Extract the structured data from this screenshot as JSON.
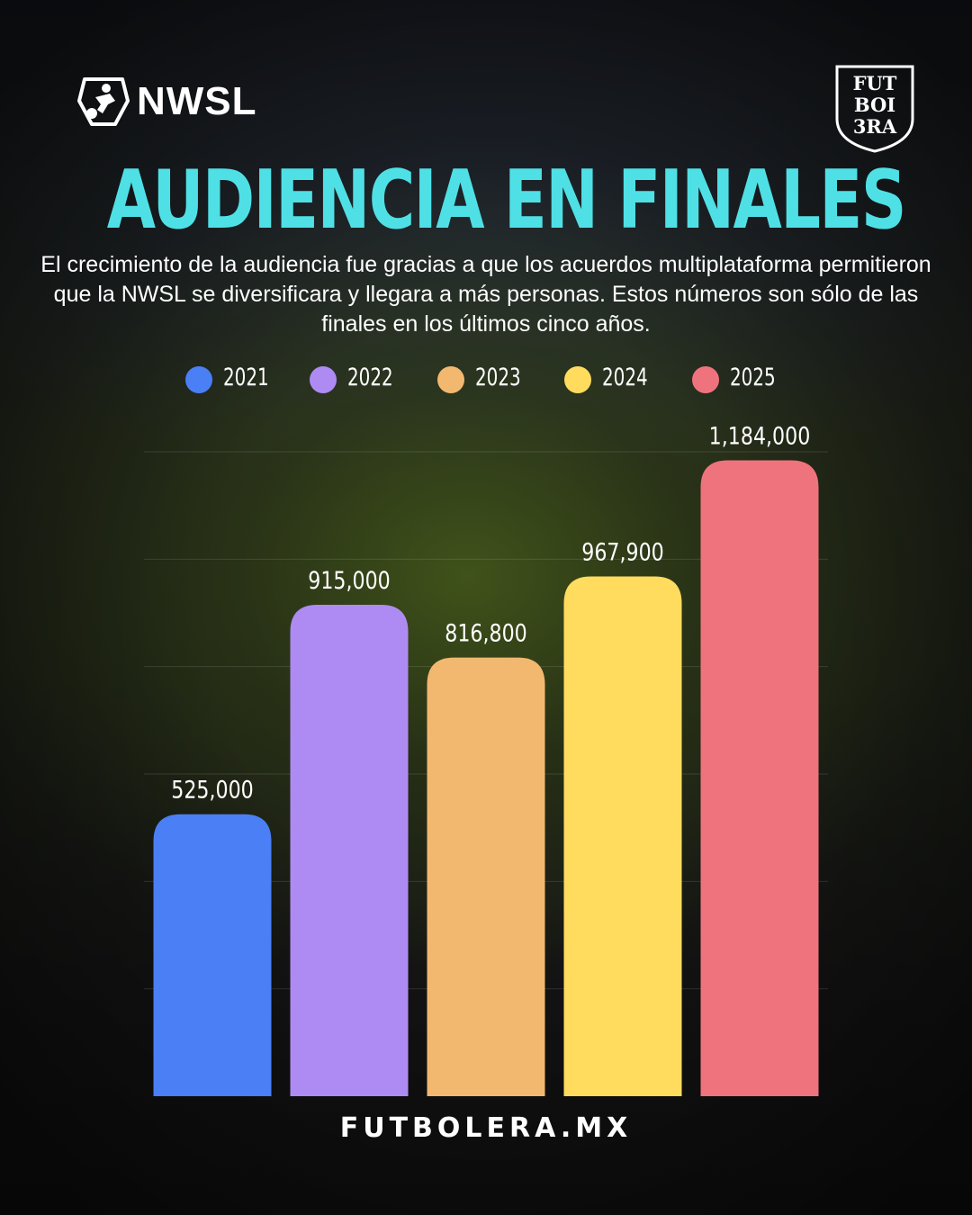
{
  "header": {
    "brand_left": "NWSL",
    "brand_right_lines": [
      "FUT",
      "BOI",
      "3RA"
    ]
  },
  "title": "AUDIENCIA EN FINALES",
  "subtitle": "El crecimiento de la audiencia fue gracias a que los acuerdos multiplataforma permitieron que la NWSL se diversificara y llegara a más personas. Estos números son sólo de las finales en los últimos cinco años.",
  "footer": "FUTBOLERA.MX",
  "icons": {
    "left_logo": "nwsl-shield-icon",
    "right_logo": "futbolera-crest-icon"
  },
  "chart_data": {
    "type": "bar",
    "title": "AUDIENCIA EN FINALES",
    "categories": [
      "2021",
      "2022",
      "2023",
      "2024",
      "2025"
    ],
    "values": [
      525000,
      915000,
      816800,
      967900,
      1184000
    ],
    "value_labels": [
      "525,000",
      "915,000",
      "816,800",
      "967,900",
      "1,184,000"
    ],
    "colors": [
      "#4a7ff5",
      "#ae8bf3",
      "#f2b870",
      "#ffdc5e",
      "#ef737d"
    ],
    "legend": {
      "position": "top-center",
      "entries": [
        "2021",
        "2022",
        "2023",
        "2024",
        "2025"
      ]
    },
    "xlabel": "",
    "ylabel": "",
    "ylim": [
      0,
      1200000
    ],
    "grid": true
  }
}
